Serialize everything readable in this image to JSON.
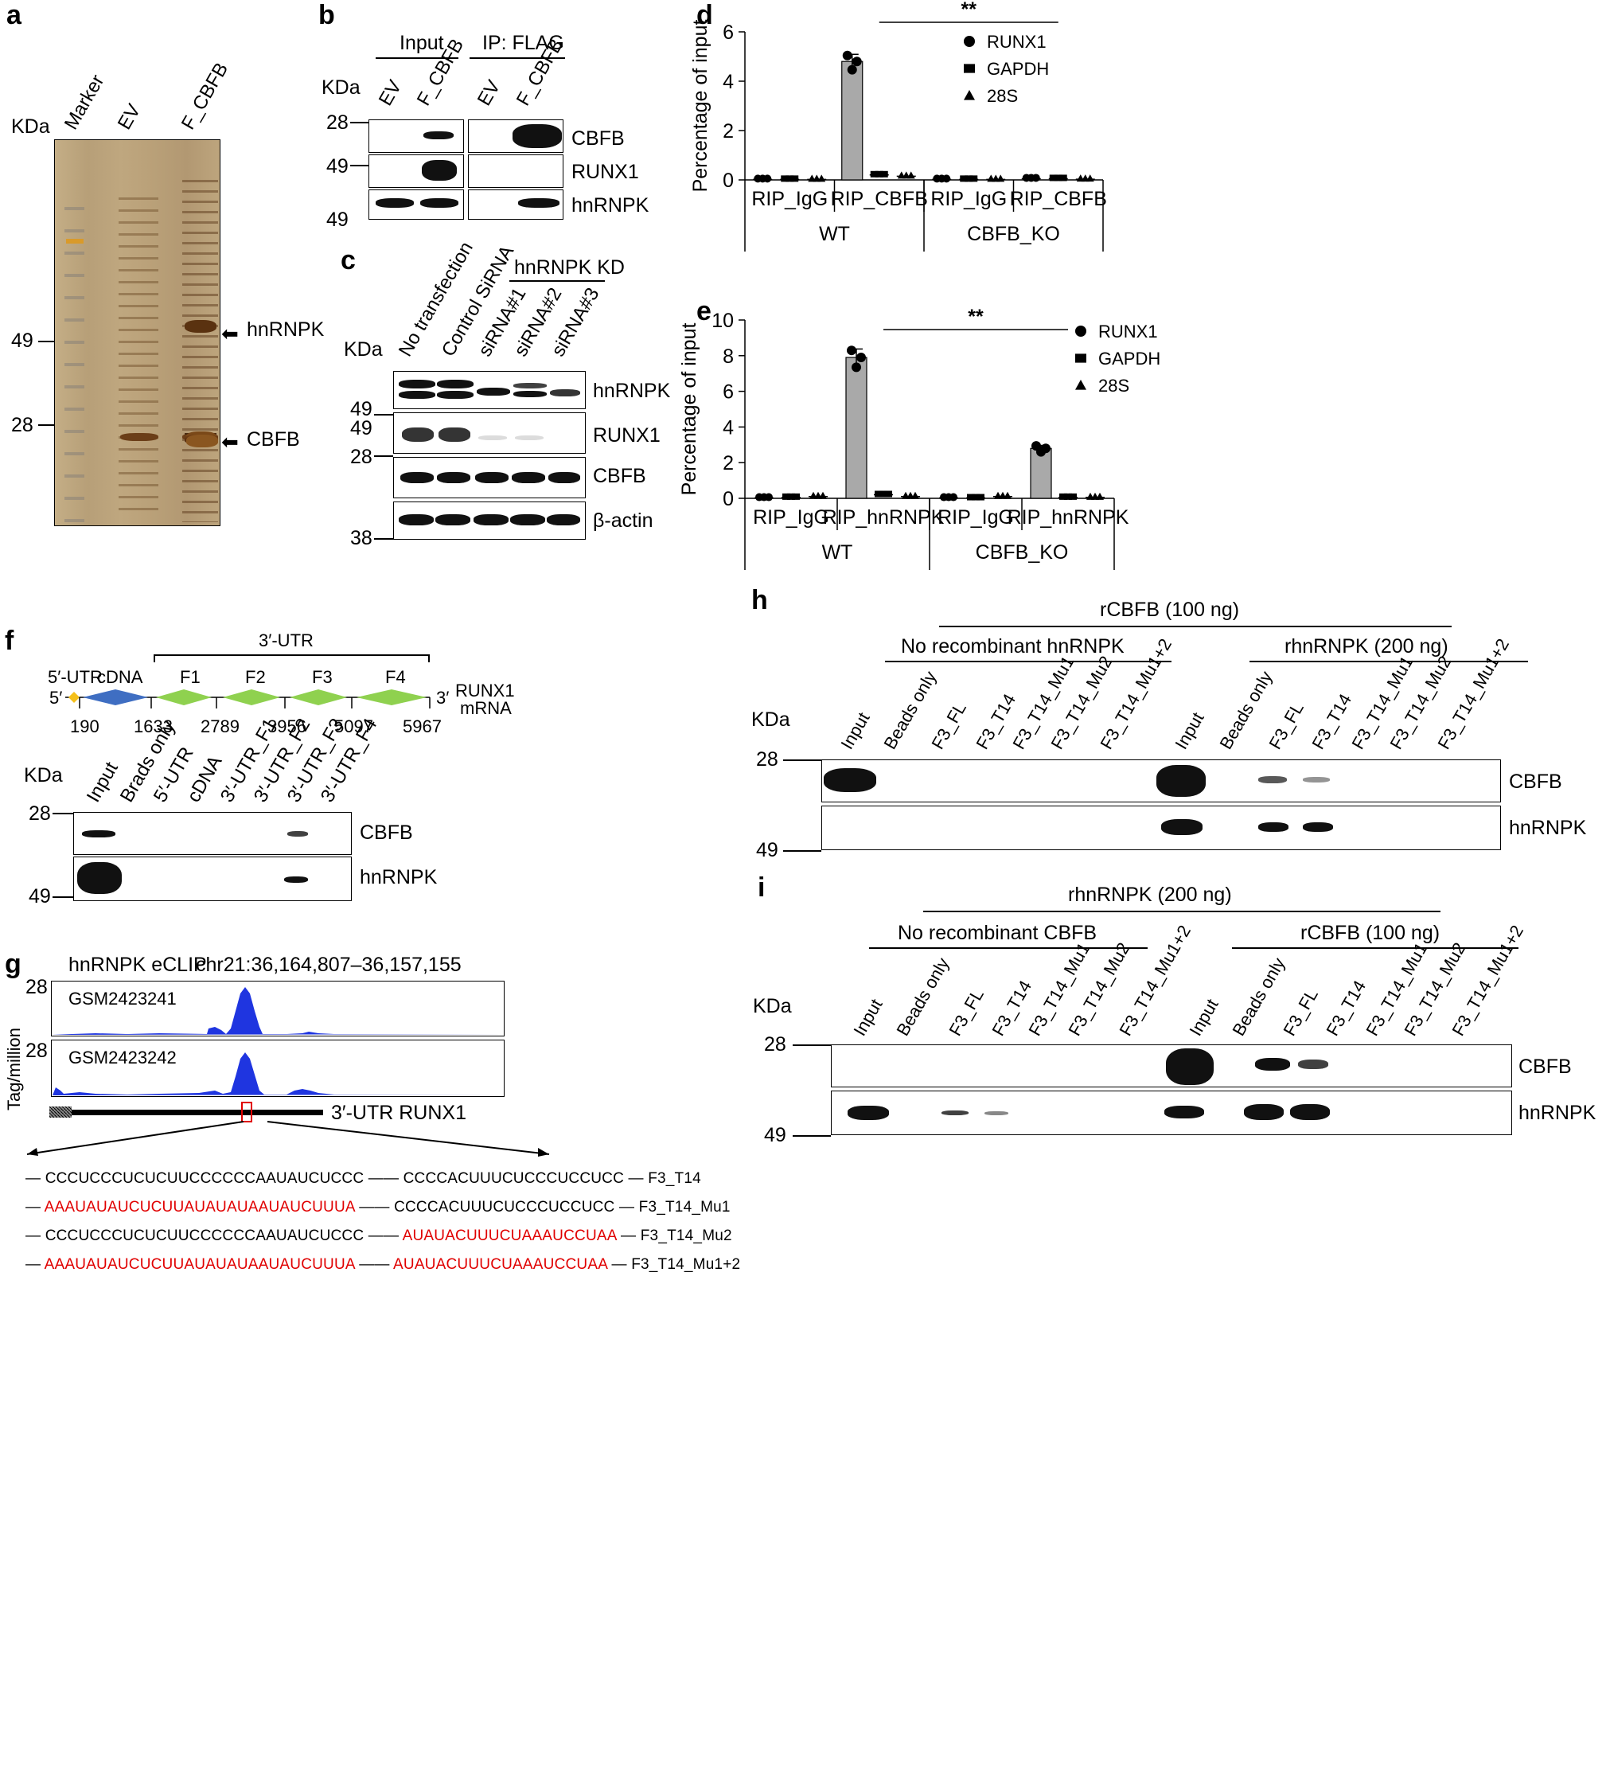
{
  "panel_letters": {
    "a": "a",
    "b": "b",
    "c": "c",
    "d": "d",
    "e": "e",
    "f": "f",
    "g": "g",
    "h": "h",
    "i": "i"
  },
  "panel_a": {
    "kda": "KDa",
    "lanes": [
      "Marker",
      "EV",
      "F_CBFB"
    ],
    "markers": [
      "49",
      "28"
    ],
    "arrows": [
      "hnRNPK",
      "CBFB"
    ]
  },
  "panel_b": {
    "kda": "KDa",
    "groups": [
      "Input",
      "IP: FLAG"
    ],
    "lanes": [
      "EV",
      "F_CBFB",
      "EV",
      "F_CBFB"
    ],
    "markers": [
      "28",
      "49",
      "49"
    ],
    "proteins": [
      "CBFB",
      "RUNX1",
      "hnRNPK"
    ]
  },
  "panel_c": {
    "kda": "KDa",
    "group": "hnRNPK KD",
    "lanes": [
      "No transfection",
      "Control SiRNA",
      "siRNA#1",
      "siRNA#2",
      "siRNA#3"
    ],
    "markers": [
      "49",
      "49",
      "28",
      "38"
    ],
    "proteins": [
      "hnRNPK",
      "RUNX1",
      "CBFB",
      "β-actin"
    ]
  },
  "panel_d": {
    "chart_data": {
      "type": "bar",
      "ylabel": "Percentage of input",
      "ylim": [
        0,
        6
      ],
      "yticks": [
        "0",
        "2",
        "4",
        "6"
      ],
      "significance": "**",
      "groups": [
        "WT",
        "CBFB_KO"
      ],
      "categories": [
        "RIP_IgG",
        "RIP_CBFB",
        "RIP_IgG",
        "RIP_CBFB"
      ],
      "legend": [
        "RUNX1",
        "GAPDH",
        "28S"
      ],
      "series": [
        {
          "name": "RUNX1",
          "values": [
            0.02,
            4.8,
            0.02,
            0.05
          ]
        },
        {
          "name": "GAPDH",
          "values": [
            0.02,
            0.2,
            0.02,
            0.05
          ]
        },
        {
          "name": "28S",
          "values": [
            0.02,
            0.15,
            0.02,
            0.03
          ]
        }
      ]
    }
  },
  "panel_e": {
    "chart_data": {
      "type": "bar",
      "ylabel": "Percentage of input",
      "ylim": [
        0,
        10
      ],
      "yticks": [
        "0",
        "2",
        "4",
        "6",
        "8",
        "10"
      ],
      "significance": "**",
      "groups": [
        "WT",
        "CBFB_KO"
      ],
      "categories": [
        "RIP_IgG",
        "RIP_hnRNPK",
        "RIP_IgG",
        "RIP_hnRNPK"
      ],
      "legend": [
        "RUNX1",
        "GAPDH",
        "28S"
      ],
      "series": [
        {
          "name": "RUNX1",
          "values": [
            0.02,
            7.9,
            0.02,
            2.8
          ]
        },
        {
          "name": "GAPDH",
          "values": [
            0.05,
            0.2,
            0.02,
            0.05
          ]
        },
        {
          "name": "28S",
          "values": [
            0.1,
            0.1,
            0.1,
            0.05
          ]
        }
      ]
    }
  },
  "panel_f": {
    "utr3": "3′-UTR",
    "labels": [
      "5′-UTR",
      "cDNA",
      "F1",
      "F2",
      "F3",
      "F4"
    ],
    "five": "5′",
    "three": "3′",
    "mrna": [
      "RUNX1",
      "mRNA"
    ],
    "positions": [
      "190",
      "1633",
      "2789",
      "3956",
      "5097",
      "5967"
    ],
    "kda": "KDa",
    "lanes": [
      "Input",
      "Brads only",
      "5′-UTR",
      "cDNA",
      "3′-UTR_F1",
      "3′-UTR_F2",
      "3′-UTR_F3",
      "3′-UTR_F4"
    ],
    "markers": [
      "28",
      "49"
    ],
    "proteins": [
      "CBFB",
      "hnRNPK"
    ]
  },
  "panel_g": {
    "title": "hnRNPK eCLIP",
    "region": "chr21:36,164,807–36,157,155",
    "ylabel": "Tag/million",
    "tracks": [
      {
        "id": "GSM2423241",
        "ymax": "28"
      },
      {
        "id": "GSM2423242",
        "ymax": "28"
      }
    ],
    "gene": "3′-UTR RUNX1",
    "sequences": [
      {
        "a": "CCCUCCCUCUCUUCCCCCCAAUAUCUCCC",
        "a_red": false,
        "b": "CCCCACUUUCUCCCUCCUCC",
        "b_red": false,
        "name": "F3_T14"
      },
      {
        "a": "AAAUAUAUCUCUUAUAUAUAAUAUCUUUA",
        "a_red": true,
        "b": "CCCCACUUUCUCCCUCCUCC",
        "b_red": false,
        "name": "F3_T14_Mu1"
      },
      {
        "a": "CCCUCCCUCUCUUCCCCCCAAUAUCUCCC",
        "a_red": false,
        "b": "AUAUACUUUCUAAAUCCUAA",
        "b_red": true,
        "name": "F3_T14_Mu2"
      },
      {
        "a": "AAAUAUAUCUCUUAUAUAUAAUAUCUUUA",
        "a_red": true,
        "b": "AUAUACUUUCUAAAUCCUAA",
        "b_red": true,
        "name": "F3_T14_Mu1+2"
      }
    ]
  },
  "panel_h": {
    "top": "rCBFB (100 ng)",
    "group_left": "No recombinant hnRNPK",
    "group_right": "rhnRNPK (200 ng)",
    "kda": "KDa",
    "lanes": [
      "Input",
      "Beads only",
      "F3_FL",
      "F3_T14",
      "F3_T14_Mu1",
      "F3_T14_Mu2",
      "F3_T14_Mu1+2",
      "Input",
      "Beads only",
      "F3_FL",
      "F3_T14",
      "F3_T14_Mu1",
      "F3_T14_Mu2",
      "F3_T14_Mu1+2"
    ],
    "markers": [
      "28",
      "49"
    ],
    "proteins": [
      "CBFB",
      "hnRNPK"
    ]
  },
  "panel_i": {
    "top": "rhnRNPK (200 ng)",
    "group_left": "No recombinant CBFB",
    "group_right": "rCBFB (100 ng)",
    "kda": "KDa",
    "lanes": [
      "Input",
      "Beads only",
      "F3_FL",
      "F3_T14",
      "F3_T14_Mu1",
      "F3_T14_Mu2",
      "F3_T14_Mu1+2",
      "Input",
      "Beads only",
      "F3_FL",
      "F3_T14",
      "F3_T14_Mu1",
      "F3_T14_Mu2",
      "F3_T14_Mu1+2"
    ],
    "markers": [
      "28",
      "49"
    ],
    "proteins": [
      "CBFB",
      "hnRNPK"
    ]
  }
}
